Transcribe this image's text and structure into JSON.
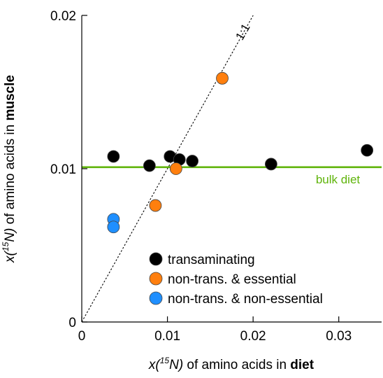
{
  "chart_data": {
    "type": "scatter",
    "xlim": [
      0,
      0.035
    ],
    "ylim": [
      0,
      0.02
    ],
    "x_ticks": [
      {
        "value": 0,
        "label": "0"
      },
      {
        "value": 0.01,
        "label": "0.01"
      },
      {
        "value": 0.02,
        "label": "0.02"
      },
      {
        "value": 0.03,
        "label": "0.03"
      }
    ],
    "y_ticks": [
      {
        "value": 0,
        "label": "0"
      },
      {
        "value": 0.01,
        "label": "0.01"
      },
      {
        "value": 0.02,
        "label": "0.02"
      }
    ],
    "xlabel": {
      "pre": "x(",
      "sup": "15",
      "mid": "N)",
      "rest": " of amino acids in ",
      "bold": "diet"
    },
    "ylabel": {
      "pre": "x(",
      "sup": "15",
      "mid": "N)",
      "rest": " of amino acids in ",
      "bold": "muscle"
    },
    "grid": false,
    "legend_position": "bottom-right",
    "series": [
      {
        "name": "transaminating",
        "color": "#000000",
        "points": [
          [
            0.0037,
            0.0108
          ],
          [
            0.0079,
            0.0102
          ],
          [
            0.0103,
            0.0108
          ],
          [
            0.0114,
            0.0106
          ],
          [
            0.0129,
            0.0105
          ],
          [
            0.0221,
            0.0103
          ],
          [
            0.0333,
            0.0112
          ]
        ]
      },
      {
        "name": "non-trans.  & essential",
        "color": "#ff7f0e",
        "points": [
          [
            0.0086,
            0.0076
          ],
          [
            0.011,
            0.01
          ],
          [
            0.0164,
            0.0159
          ]
        ]
      },
      {
        "name": "non-trans.  & non-essential",
        "color": "#1f8fff",
        "points": [
          [
            0.0037,
            0.0067
          ],
          [
            0.0037,
            0.0062
          ]
        ]
      }
    ],
    "reference_lines": [
      {
        "kind": "identity",
        "label": "1:1",
        "color": "#000000",
        "style": "dotted"
      },
      {
        "kind": "horizontal",
        "y": 0.0101,
        "label": "bulk  diet",
        "color": "#5fb40a",
        "style": "solid"
      }
    ]
  }
}
